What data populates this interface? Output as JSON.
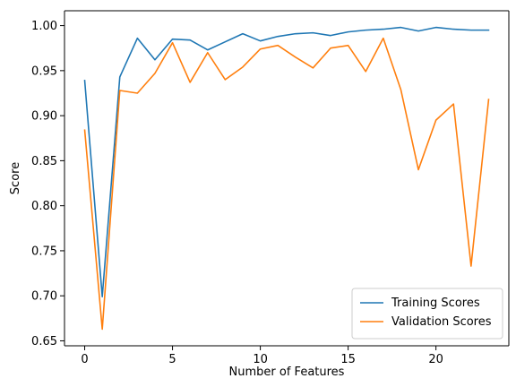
{
  "chart_data": {
    "type": "line",
    "title": "",
    "xlabel": "Number of Features",
    "ylabel": "Score",
    "xlim": [
      -1.15,
      24.15
    ],
    "ylim": [
      0.6445,
      1.0165
    ],
    "xticks": [
      0,
      5,
      10,
      15,
      20
    ],
    "yticks": [
      0.65,
      0.7,
      0.75,
      0.8,
      0.85,
      0.9,
      0.95,
      1.0
    ],
    "xtick_labels": [
      "0",
      "5",
      "10",
      "15",
      "20"
    ],
    "ytick_labels": [
      "0.65",
      "0.70",
      "0.75",
      "0.80",
      "0.85",
      "0.90",
      "0.95",
      "1.00"
    ],
    "grid": false,
    "legend_position": "lower-right",
    "x": [
      0,
      1,
      2,
      3,
      4,
      5,
      6,
      7,
      8,
      9,
      10,
      11,
      12,
      13,
      14,
      15,
      16,
      17,
      18,
      19,
      20,
      21,
      22,
      23
    ],
    "series": [
      {
        "name": "Training Scores",
        "color": "#1f77b4",
        "values": [
          0.939,
          0.699,
          0.943,
          0.986,
          0.962,
          0.985,
          0.984,
          0.973,
          0.982,
          0.991,
          0.983,
          0.988,
          0.991,
          0.992,
          0.989,
          0.993,
          0.995,
          0.996,
          0.998,
          0.994,
          0.998,
          0.996,
          0.995,
          0.995
        ]
      },
      {
        "name": "Validation Scores",
        "color": "#ff7f0e",
        "values": [
          0.884,
          0.663,
          0.928,
          0.925,
          0.947,
          0.981,
          0.937,
          0.97,
          0.94,
          0.954,
          0.974,
          0.978,
          0.965,
          0.953,
          0.975,
          0.978,
          0.949,
          0.986,
          0.929,
          0.84,
          0.895,
          0.913,
          0.733,
          0.918
        ]
      }
    ]
  }
}
